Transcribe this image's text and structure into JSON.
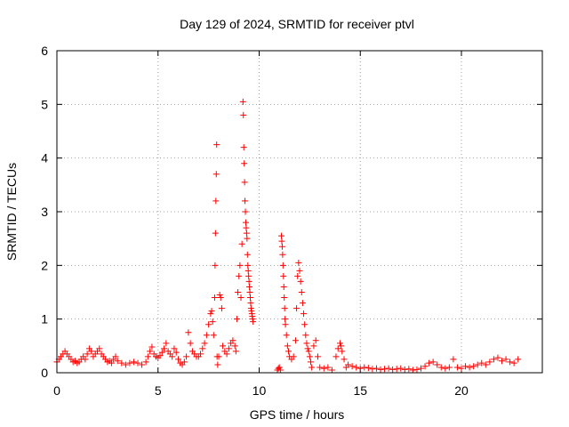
{
  "chart_data": {
    "type": "scatter",
    "title": "Day 129 of 2024, SRMTID for receiver ptvl",
    "xlabel": "GPS time / hours",
    "ylabel": "SRMTID / TECUs",
    "xlim": [
      0,
      24
    ],
    "ylim": [
      0,
      6
    ],
    "xticks": [
      0,
      5,
      10,
      15,
      20
    ],
    "yticks": [
      0,
      1,
      2,
      3,
      4,
      5,
      6
    ],
    "grid": true,
    "marker": "plus",
    "series_color": "#ff0000",
    "grid_color": "#a0a0a0",
    "series": [
      {
        "name": "SRMTID",
        "x": [
          0.0,
          0.1,
          0.2,
          0.3,
          0.4,
          0.5,
          0.6,
          0.7,
          0.8,
          0.9,
          1.0,
          1.1,
          1.2,
          1.3,
          1.4,
          1.5,
          1.6,
          1.7,
          1.8,
          1.9,
          2.0,
          2.1,
          2.2,
          2.3,
          2.4,
          2.5,
          2.6,
          2.7,
          2.8,
          2.9,
          3.0,
          3.2,
          3.4,
          3.6,
          3.8,
          4.0,
          4.2,
          4.4,
          4.5,
          4.6,
          4.7,
          4.8,
          4.9,
          5.0,
          5.1,
          5.2,
          5.3,
          5.4,
          5.5,
          5.6,
          5.7,
          5.8,
          5.9,
          6.0,
          6.1,
          6.2,
          6.3,
          6.4,
          6.5,
          6.6,
          6.7,
          6.8,
          6.9,
          7.0,
          7.1,
          7.2,
          7.3,
          7.4,
          7.5,
          7.6,
          7.65,
          7.7,
          7.75,
          7.8,
          7.82,
          7.84,
          7.86,
          7.88,
          7.9,
          7.92,
          7.95,
          8.0,
          8.05,
          8.1,
          8.15,
          8.2,
          8.3,
          8.4,
          8.5,
          8.6,
          8.7,
          8.8,
          8.85,
          8.9,
          8.95,
          9.0,
          9.05,
          9.1,
          9.15,
          9.2,
          9.22,
          9.24,
          9.26,
          9.28,
          9.3,
          9.32,
          9.34,
          9.36,
          9.38,
          9.4,
          9.42,
          9.44,
          9.46,
          9.48,
          9.5,
          9.52,
          9.54,
          9.56,
          9.58,
          9.6,
          9.62,
          9.64,
          9.66,
          9.68,
          9.7,
          10.9,
          10.95,
          11.0,
          11.05,
          11.1,
          11.12,
          11.14,
          11.16,
          11.18,
          11.2,
          11.22,
          11.24,
          11.26,
          11.28,
          11.3,
          11.35,
          11.4,
          11.45,
          11.5,
          11.6,
          11.7,
          11.8,
          11.85,
          11.9,
          11.95,
          12.0,
          12.05,
          12.1,
          12.15,
          12.2,
          12.25,
          12.3,
          12.35,
          12.4,
          12.45,
          12.5,
          12.55,
          12.6,
          12.7,
          12.8,
          12.9,
          13.0,
          13.2,
          13.4,
          13.6,
          13.8,
          13.9,
          14.0,
          14.05,
          14.1,
          14.2,
          14.3,
          14.4,
          14.6,
          14.8,
          15.0,
          15.2,
          15.4,
          15.6,
          15.8,
          16.0,
          16.2,
          16.4,
          16.6,
          16.8,
          17.0,
          17.2,
          17.4,
          17.6,
          17.8,
          18.0,
          18.2,
          18.4,
          18.6,
          18.8,
          19.0,
          19.2,
          19.4,
          19.6,
          19.8,
          20.0,
          20.2,
          20.4,
          20.6,
          20.8,
          21.0,
          21.2,
          21.4,
          21.6,
          21.8,
          22.0,
          22.2,
          22.4,
          22.6,
          22.8
        ],
        "y": [
          0.2,
          0.25,
          0.3,
          0.35,
          0.4,
          0.35,
          0.3,
          0.25,
          0.2,
          0.22,
          0.18,
          0.2,
          0.25,
          0.3,
          0.25,
          0.35,
          0.45,
          0.4,
          0.3,
          0.35,
          0.4,
          0.45,
          0.35,
          0.3,
          0.25,
          0.2,
          0.22,
          0.18,
          0.25,
          0.3,
          0.22,
          0.18,
          0.15,
          0.18,
          0.2,
          0.18,
          0.15,
          0.2,
          0.3,
          0.4,
          0.48,
          0.35,
          0.3,
          0.28,
          0.32,
          0.38,
          0.45,
          0.55,
          0.4,
          0.35,
          0.3,
          0.45,
          0.38,
          0.25,
          0.18,
          0.15,
          0.2,
          0.3,
          0.75,
          0.55,
          0.4,
          0.35,
          0.3,
          0.3,
          0.35,
          0.45,
          0.55,
          0.7,
          0.9,
          1.1,
          1.15,
          0.95,
          0.7,
          1.4,
          2.0,
          2.6,
          3.2,
          3.7,
          4.25,
          0.3,
          0.15,
          0.3,
          1.45,
          1.4,
          1.2,
          0.5,
          0.4,
          0.35,
          0.45,
          0.55,
          0.6,
          0.5,
          0.4,
          1.0,
          1.5,
          1.8,
          2.0,
          1.4,
          2.4,
          5.05,
          4.8,
          4.2,
          3.9,
          3.55,
          3.2,
          3.0,
          2.8,
          2.7,
          2.6,
          2.5,
          2.2,
          2.0,
          1.9,
          1.8,
          1.7,
          1.6,
          1.5,
          1.4,
          1.3,
          1.2,
          1.15,
          1.1,
          1.05,
          1.0,
          0.95,
          0.05,
          0.08,
          0.1,
          0.05,
          2.55,
          2.45,
          2.35,
          2.2,
          2.0,
          1.8,
          1.6,
          1.4,
          1.2,
          1.0,
          0.9,
          0.7,
          0.5,
          0.4,
          0.3,
          0.25,
          0.3,
          0.6,
          1.2,
          1.8,
          2.05,
          1.9,
          1.7,
          1.5,
          1.3,
          1.1,
          0.9,
          0.7,
          0.55,
          0.45,
          0.4,
          0.3,
          0.2,
          0.1,
          0.5,
          0.6,
          0.3,
          0.1,
          0.08,
          0.1,
          0.05,
          0.3,
          0.45,
          0.55,
          0.5,
          0.4,
          0.25,
          0.1,
          0.15,
          0.12,
          0.1,
          0.08,
          0.1,
          0.09,
          0.07,
          0.08,
          0.06,
          0.07,
          0.08,
          0.06,
          0.07,
          0.08,
          0.06,
          0.07,
          0.05,
          0.06,
          0.08,
          0.12,
          0.18,
          0.2,
          0.15,
          0.1,
          0.08,
          0.1,
          0.25,
          0.1,
          0.08,
          0.12,
          0.1,
          0.12,
          0.15,
          0.18,
          0.15,
          0.2,
          0.25,
          0.28,
          0.22,
          0.25,
          0.2,
          0.18,
          0.25
        ]
      }
    ]
  }
}
